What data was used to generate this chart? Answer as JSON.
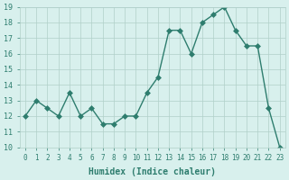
{
  "x": [
    0,
    1,
    2,
    3,
    4,
    5,
    6,
    7,
    8,
    9,
    10,
    11,
    12,
    13,
    14,
    15,
    16,
    17,
    18,
    19,
    20,
    21,
    22,
    23
  ],
  "y": [
    12,
    13,
    12.5,
    12,
    13.5,
    12,
    12.5,
    11.5,
    11.5,
    12,
    12,
    13.5,
    14.5,
    17.5,
    17.5,
    16,
    18,
    18.5,
    19,
    17.5,
    16.5,
    16.5,
    12.5,
    10
  ],
  "xlabel": "Humidex (Indice chaleur)",
  "ylim": [
    10,
    19
  ],
  "line_color": "#2e7d6e",
  "marker": "D",
  "marker_size": 3,
  "bg_color": "#d8f0ed",
  "grid_color": "#b0cfc9",
  "label_color": "#2e7d6e",
  "tick_label_color": "#2e7d6e",
  "yticks": [
    10,
    11,
    12,
    13,
    14,
    15,
    16,
    17,
    18,
    19
  ],
  "xticks": [
    0,
    1,
    2,
    3,
    4,
    5,
    6,
    7,
    8,
    9,
    10,
    11,
    12,
    13,
    14,
    15,
    16,
    17,
    18,
    19,
    20,
    21,
    22,
    23
  ]
}
